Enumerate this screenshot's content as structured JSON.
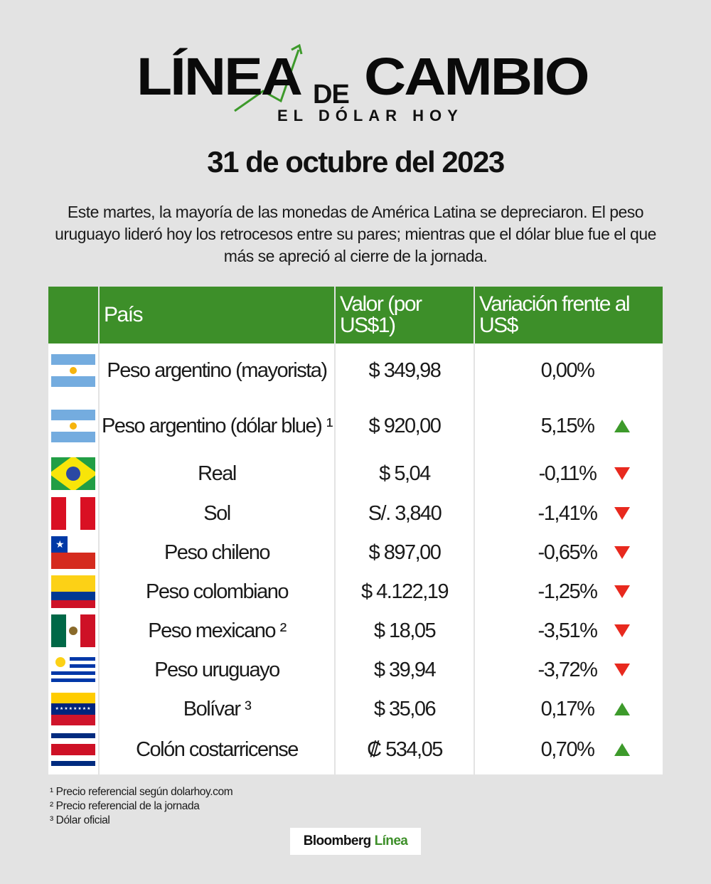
{
  "header": {
    "logo_linea": "LÍNEA",
    "logo_de": "DE",
    "logo_cambio": "CAMBIO",
    "logo_sub": "EL DÓLAR HOY",
    "date": "31 de octubre del 2023",
    "intro": "Este martes, la mayoría de las monedas de América Latina se depreciaron. El peso uruguayo lideró hoy los retrocesos entre su pares; mientras que el dólar blue fue el que más se apreció al cierre de la jornada."
  },
  "table": {
    "columns": [
      "",
      "País",
      "Valor (por US$1)",
      "Variación frente al US$"
    ],
    "rows": [
      {
        "flag": "argentina-flag",
        "country": "Peso argentino (mayorista)",
        "value": "$ 349,98",
        "variation": "0,00%",
        "direction": "none"
      },
      {
        "flag": "argentina-flag",
        "country": "Peso argentino (dólar blue) ¹",
        "value": "$ 920,00",
        "variation": "5,15%",
        "direction": "up"
      },
      {
        "flag": "brazil-flag",
        "country": "Real",
        "value": "$ 5,04",
        "variation": "-0,11%",
        "direction": "down"
      },
      {
        "flag": "peru-flag",
        "country": "Sol",
        "value": "S/. 3,840",
        "variation": "-1,41%",
        "direction": "down"
      },
      {
        "flag": "chile-flag",
        "country": "Peso chileno",
        "value": "$ 897,00",
        "variation": "-0,65%",
        "direction": "down"
      },
      {
        "flag": "colombia-flag",
        "country": "Peso colombiano",
        "value": "$ 4.122,19",
        "variation": "-1,25%",
        "direction": "down"
      },
      {
        "flag": "mexico-flag",
        "country": "Peso mexicano ²",
        "value": "$ 18,05",
        "variation": "-3,51%",
        "direction": "down"
      },
      {
        "flag": "uruguay-flag",
        "country": "Peso uruguayo",
        "value": "$ 39,94",
        "variation": "-3,72%",
        "direction": "down"
      },
      {
        "flag": "venezuela-flag",
        "country": "Bolívar ³",
        "value": "$ 35,06",
        "variation": "0,17%",
        "direction": "up"
      },
      {
        "flag": "costa-rica-flag",
        "country": "Colón costarricense",
        "value": "₡ 534,05",
        "variation": "0,70%",
        "direction": "up"
      }
    ]
  },
  "notes": [
    "¹ Precio referencial según dolarhoy.com",
    "² Precio referencial de la jornada",
    "³ Dólar oficial"
  ],
  "brand": {
    "part1": "Bloomberg",
    "part2": "Línea"
  },
  "colors": {
    "header_green": "#3d8f29",
    "up": "#3d9a2b",
    "down": "#e8291e",
    "background": "#e3e3e3"
  }
}
